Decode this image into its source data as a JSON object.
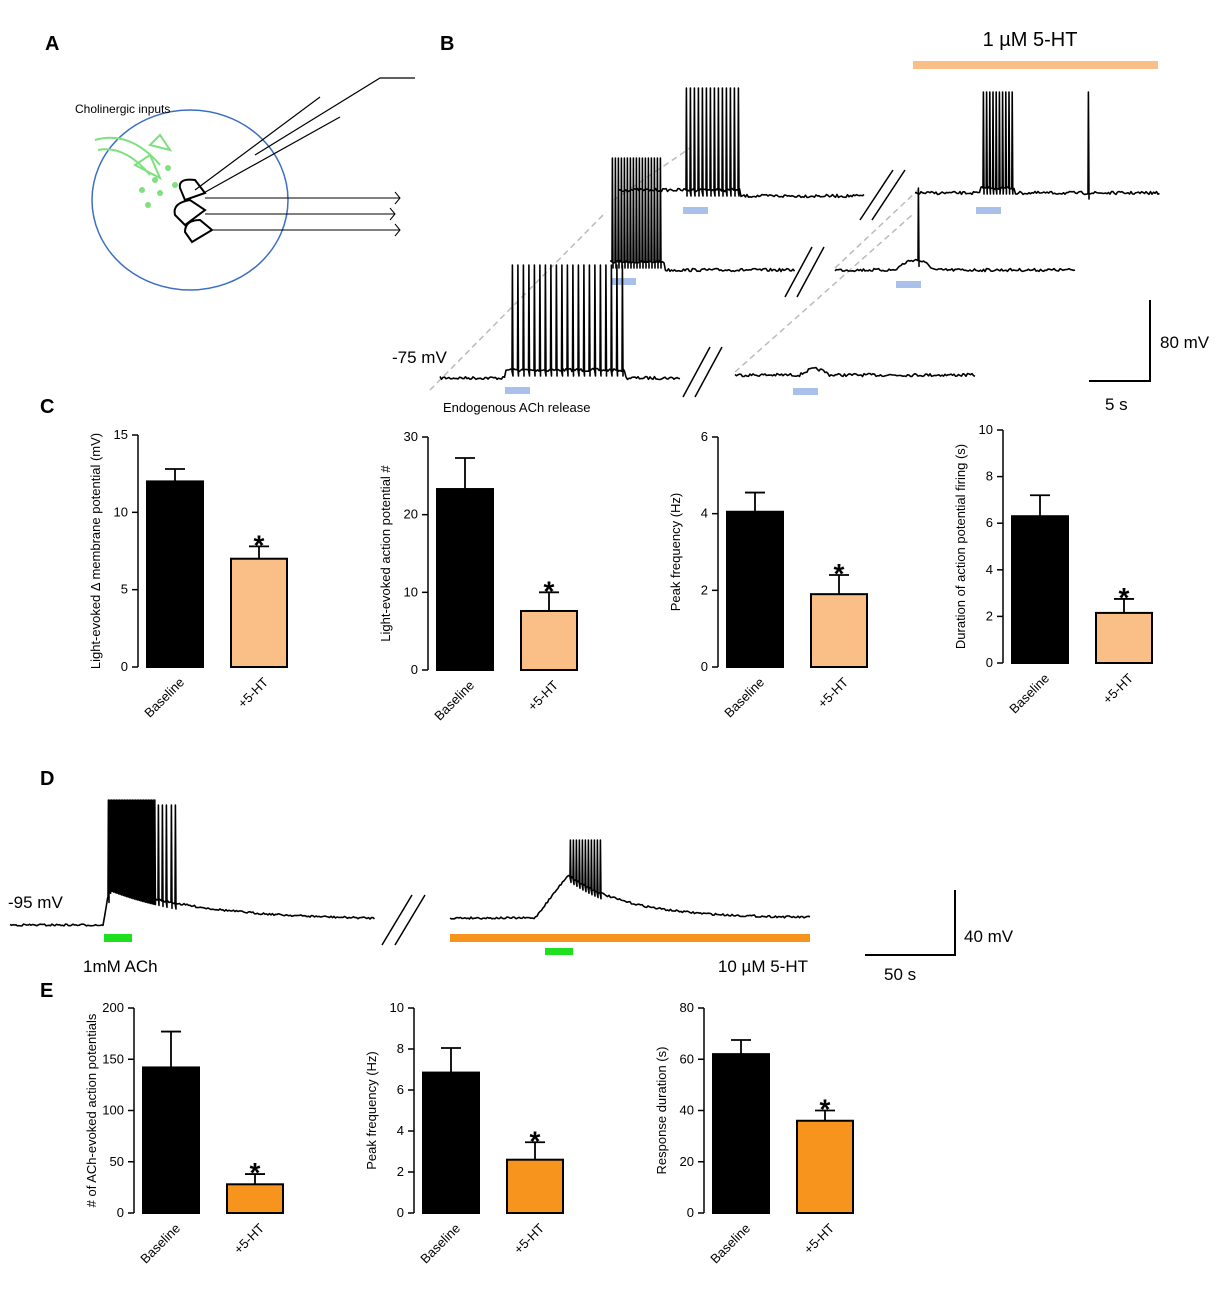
{
  "panel_labels": [
    "A",
    "B",
    "C",
    "D",
    "E"
  ],
  "panel_a": {
    "label": "Cholinergic inputs"
  },
  "panel_b": {
    "drug": "1 µM 5-HT",
    "potential": "-75 mV",
    "stimulus": "Endogenous ACh release",
    "scale_v": "80 mV",
    "scale_t": "5 s"
  },
  "panel_d": {
    "potential": "-95 mV",
    "stimulus": "1mM ACh",
    "drug": "10 µM 5-HT",
    "scale_v": "40 mV",
    "scale_t": "50 s"
  },
  "chart_data": [
    {
      "type": "bar",
      "ylabel": "Light-evoked Δ membrane potential (mV)",
      "categories": [
        "Baseline",
        "+5-HT"
      ],
      "values": [
        12,
        7
      ],
      "errors": [
        0.8,
        0.8
      ],
      "colors": [
        "#000000",
        "#f9bf86"
      ],
      "ylim": [
        0,
        15
      ],
      "yticks": [
        0,
        5,
        10,
        15
      ],
      "annotation": "*"
    },
    {
      "type": "bar",
      "ylabel": "Light-evoked action potential #",
      "categories": [
        "Baseline",
        "+5-HT"
      ],
      "values": [
        23.3,
        7.6
      ],
      "errors": [
        4,
        2.4
      ],
      "colors": [
        "#000000",
        "#f9bf86"
      ],
      "ylim": [
        0,
        30
      ],
      "yticks": [
        0,
        10,
        20,
        30
      ],
      "annotation": "*"
    },
    {
      "type": "bar",
      "ylabel": "Peak frequency (Hz)",
      "categories": [
        "Baseline",
        "+5-HT"
      ],
      "values": [
        4.05,
        1.9
      ],
      "errors": [
        0.5,
        0.5
      ],
      "colors": [
        "#000000",
        "#f9bf86"
      ],
      "ylim": [
        0,
        6
      ],
      "yticks": [
        0,
        2,
        4,
        6
      ],
      "annotation": "*"
    },
    {
      "type": "bar",
      "ylabel": "Duration of action potential firing (s)",
      "categories": [
        "Baseline",
        "+5-HT"
      ],
      "values": [
        6.3,
        2.15
      ],
      "errors": [
        0.9,
        0.6
      ],
      "colors": [
        "#000000",
        "#f9bf86"
      ],
      "ylim": [
        0,
        10
      ],
      "yticks": [
        0,
        2,
        4,
        6,
        8,
        10
      ],
      "annotation": "*"
    },
    {
      "type": "bar",
      "ylabel": "# of ACh-evoked action potentials",
      "categories": [
        "Baseline",
        "+5-HT"
      ],
      "values": [
        142,
        28
      ],
      "errors": [
        35,
        10
      ],
      "colors": [
        "#000000",
        "#f7941d"
      ],
      "ylim": [
        0,
        200
      ],
      "yticks": [
        0,
        50,
        100,
        150,
        200
      ],
      "annotation": "*"
    },
    {
      "type": "bar",
      "ylabel": "Peak frequency (Hz)",
      "categories": [
        "Baseline",
        "+5-HT"
      ],
      "values": [
        6.85,
        2.6
      ],
      "errors": [
        1.2,
        0.85
      ],
      "colors": [
        "#000000",
        "#f7941d"
      ],
      "ylim": [
        0,
        10
      ],
      "yticks": [
        0,
        2,
        4,
        6,
        8,
        10
      ],
      "annotation": "*"
    },
    {
      "type": "bar",
      "ylabel": "Response duration (s)",
      "categories": [
        "Baseline",
        "+5-HT"
      ],
      "values": [
        62,
        36
      ],
      "errors": [
        5.5,
        4
      ],
      "colors": [
        "#000000",
        "#f7941d"
      ],
      "ylim": [
        0,
        80
      ],
      "yticks": [
        0,
        20,
        40,
        60,
        80
      ],
      "annotation": "*"
    }
  ]
}
